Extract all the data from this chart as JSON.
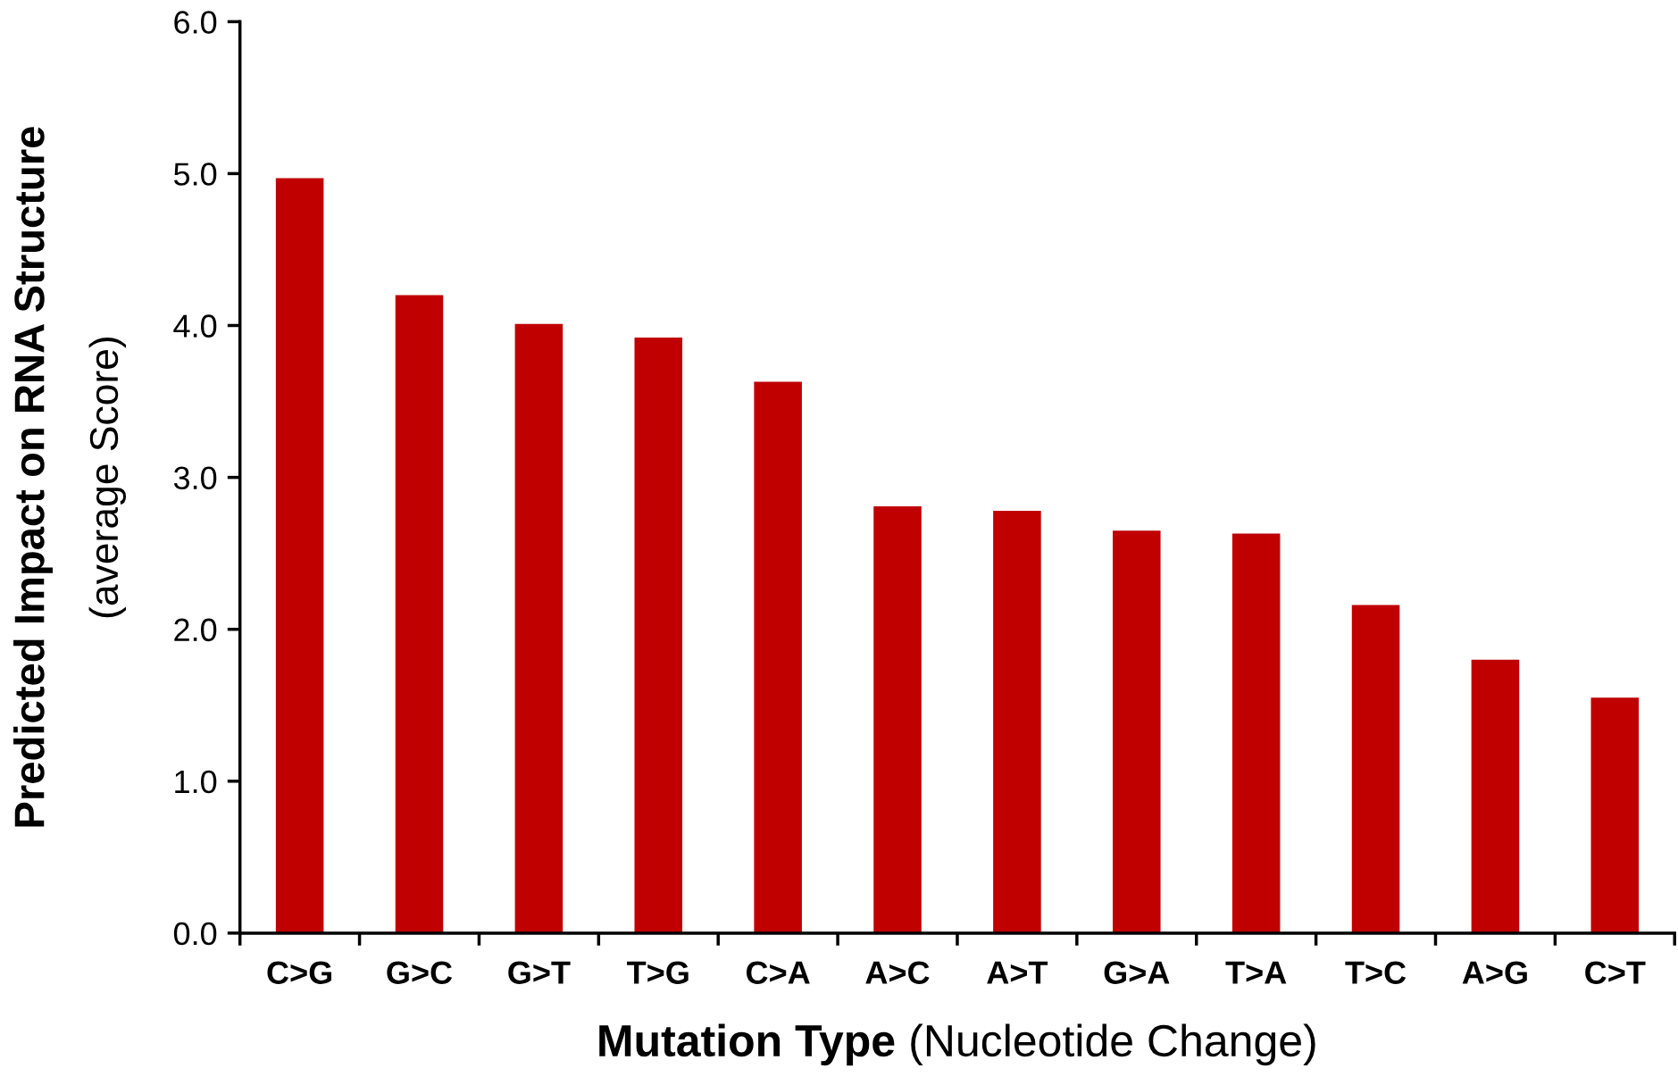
{
  "chart_data": {
    "type": "bar",
    "xlabel": "Mutation Type (Nucleotide Change)",
    "ylabel": "Predicted Impact on RNA Structure\n(average Score)",
    "categories": [
      "C>G",
      "G>C",
      "G>T",
      "T>G",
      "C>A",
      "A>C",
      "A>T",
      "G>A",
      "T>A",
      "T>C",
      "A>G",
      "C>T"
    ],
    "values": [
      4.97,
      4.2,
      4.01,
      3.92,
      3.63,
      2.81,
      2.78,
      2.65,
      2.63,
      2.16,
      1.8,
      1.55
    ],
    "color": "#c00000",
    "ylim": [
      0,
      6
    ],
    "yticks": [
      {
        "value": 0,
        "label": "0.0"
      },
      {
        "value": 1,
        "label": "1.0"
      },
      {
        "value": 2,
        "label": "2.0"
      },
      {
        "value": 3,
        "label": "3.0"
      },
      {
        "value": 4,
        "label": "4.0"
      },
      {
        "value": 5,
        "label": "5.0"
      },
      {
        "value": 6,
        "label": "6.0"
      }
    ],
    "grid": false,
    "legend": false
  }
}
